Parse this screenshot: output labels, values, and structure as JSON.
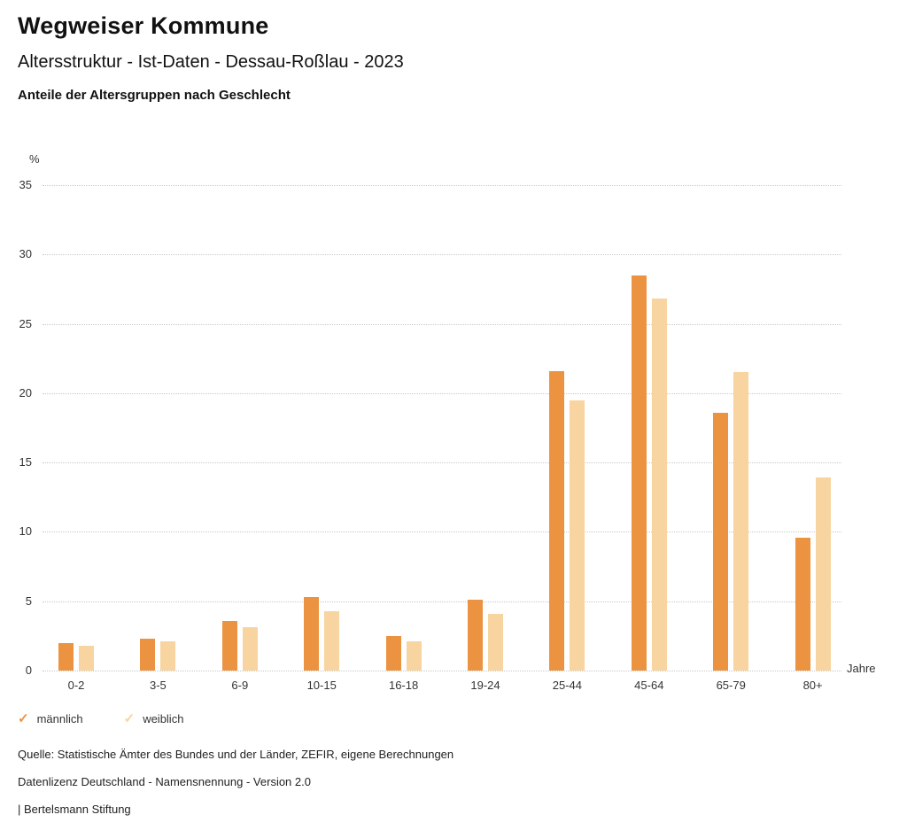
{
  "header": {
    "title": "Wegweiser Kommune",
    "subtitle": "Altersstruktur - Ist-Daten - Dessau-Roßlau - 2023",
    "chart_heading": "Anteile der Altersgruppen nach Geschlecht"
  },
  "chart_data": {
    "type": "bar",
    "title": "Anteile der Altersgruppen nach Geschlecht",
    "categories": [
      "0-2",
      "3-5",
      "6-9",
      "10-15",
      "16-18",
      "19-24",
      "25-44",
      "45-64",
      "65-79",
      "80+"
    ],
    "series": [
      {
        "name": "männlich",
        "color": "#EB9340",
        "values": [
          2.0,
          2.3,
          3.6,
          5.3,
          2.5,
          5.1,
          21.6,
          28.5,
          18.6,
          9.6
        ]
      },
      {
        "name": "weiblich",
        "color": "#F8D4A0",
        "values": [
          1.8,
          2.1,
          3.1,
          4.3,
          2.1,
          4.1,
          19.5,
          26.8,
          21.5,
          13.9
        ]
      }
    ],
    "ylabel": "%",
    "xlabel": "Jahre",
    "ylim": [
      0,
      35
    ],
    "ytick_step": 5,
    "yticks": [
      0,
      5,
      10,
      15,
      20,
      25,
      30,
      35
    ],
    "grid": true,
    "legend_position": "bottom-left"
  },
  "legend": {
    "marker": "✓",
    "items": [
      {
        "label": "männlich",
        "color": "#EB9340"
      },
      {
        "label": "weiblich",
        "color": "#F8D4A0"
      }
    ]
  },
  "footer": {
    "source": "Quelle: Statistische Ämter des Bundes und der Länder, ZEFIR, eigene Berechnungen",
    "license": "Datenlizenz Deutschland - Namensnennung - Version 2.0",
    "attribution": "| Bertelsmann Stiftung"
  }
}
